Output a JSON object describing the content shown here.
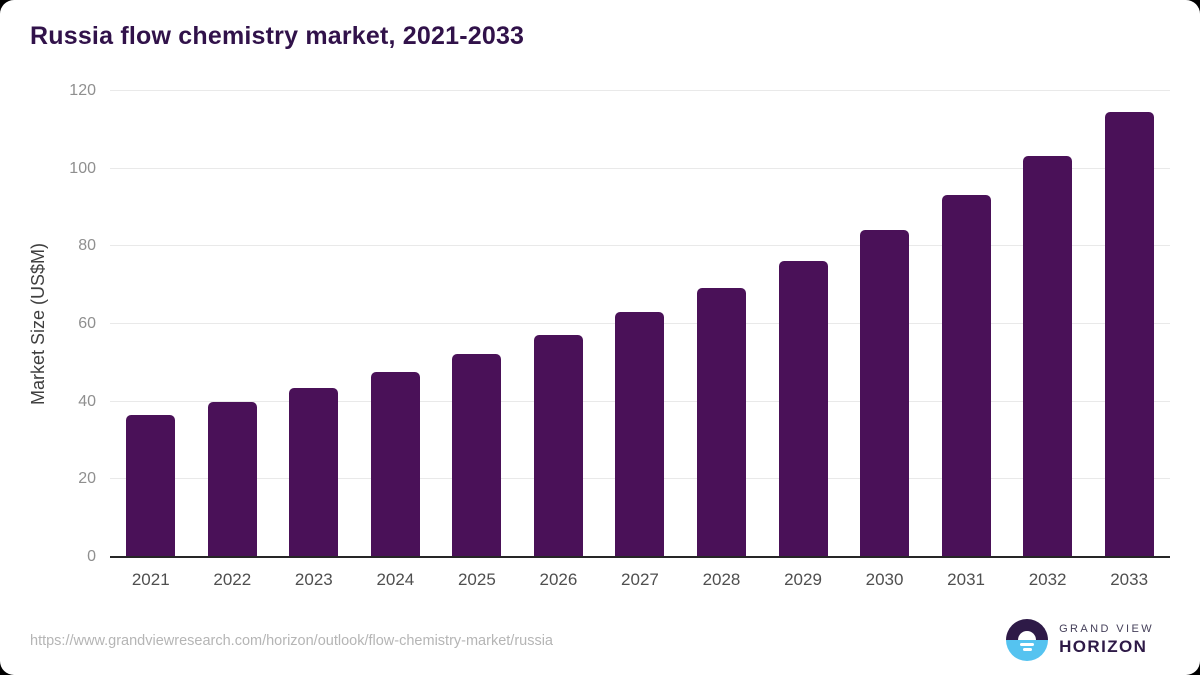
{
  "header": {
    "title": "Russia flow chemistry market, 2021-2033"
  },
  "chart_data": {
    "type": "bar",
    "title": "Russia flow chemistry market, 2021-2033",
    "categories": [
      "2021",
      "2022",
      "2023",
      "2024",
      "2025",
      "2026",
      "2027",
      "2028",
      "2029",
      "2030",
      "2031",
      "2032",
      "2033"
    ],
    "values": [
      36.5,
      39.8,
      43.4,
      47.6,
      52.2,
      57.3,
      63.0,
      69.3,
      76.1,
      84.3,
      93.1,
      103.2,
      114.6
    ],
    "xlabel": "",
    "ylabel": "Market Size (US$M)",
    "ylim": [
      0,
      120
    ],
    "yticks": [
      0,
      20,
      40,
      60,
      80,
      100,
      120
    ],
    "grid": "horizontal",
    "legend": false,
    "bar_color": "#4a1158"
  },
  "footer": {
    "source_url": "https://www.grandviewresearch.com/horizon/outlook/flow-chemistry-market/russia",
    "logo": {
      "top_text": "GRAND VIEW",
      "bottom_text": "HORIZON"
    }
  },
  "colors": {
    "title_text": "#31124a",
    "bar": "#4a1158",
    "axis_line": "#262626",
    "gridline": "#e9e9e9",
    "y_tick_text": "#8f8f8f",
    "x_tick_text": "#4f4f4f",
    "source_url_text": "#b5b5b5",
    "logo_dark_purple": "#2e1a47",
    "logo_light_blue": "#55c3f0"
  }
}
